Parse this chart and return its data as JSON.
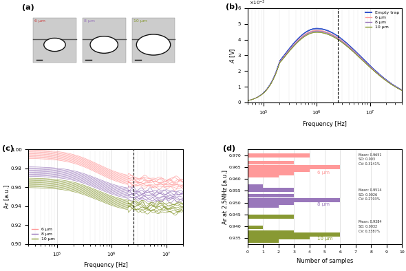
{
  "panel_b": {
    "xlabel": "Frequency [Hz]",
    "ylabel": "A [V]",
    "ylim": [
      0,
      6
    ],
    "xlim_log": [
      50000.0,
      40000000.0
    ],
    "dashed_x": 2500000.0,
    "colors": {
      "empty": "#3355CC",
      "6um": "#FF9999",
      "8um": "#9977BB",
      "10um": "#889933"
    },
    "legend": [
      "Empty trap",
      "6 μm",
      "8 μm",
      "10 μm"
    ]
  },
  "panel_c": {
    "xlabel": "Frequency [Hz]",
    "ylabel": "Ar [a.u.]",
    "ylim": [
      0.9,
      1.0
    ],
    "xlim_log": [
      30000.0,
      20000000.0
    ],
    "dashed_x": 2500000.0,
    "colors": {
      "6um": "#FF9999",
      "8um": "#9977BB",
      "10um": "#889933"
    },
    "legend": [
      "6 μm",
      "8 μm",
      "10 μm"
    ]
  },
  "panel_d": {
    "xlabel": "Number of samples",
    "ylabel": "Ar at 2.5MHz [a.u.]",
    "xlim": [
      0,
      10
    ],
    "ylim": [
      0.9325,
      0.9725
    ],
    "colors": {
      "6um": "#FF9999",
      "8um": "#9977BB",
      "10um": "#889933"
    },
    "bars_6um_y": [
      0.97,
      0.967,
      0.965,
      0.9638,
      0.9625,
      0.9615
    ],
    "bars_6um_x": [
      4,
      3,
      6,
      4,
      3,
      2
    ],
    "bars_8um_y": [
      0.957,
      0.9555,
      0.953,
      0.951,
      0.9498,
      0.9488
    ],
    "bars_8um_x": [
      1,
      3,
      3,
      6,
      3,
      2
    ],
    "bars_10um_y": [
      0.944,
      0.9395,
      0.9375,
      0.9365,
      0.9352,
      0.9338
    ],
    "bars_10um_x": [
      3,
      1,
      3,
      6,
      4,
      2
    ],
    "stats_6um": {
      "mean": 0.9651,
      "sd": 0.003,
      "cv": "0.3141%"
    },
    "stats_8um": {
      "mean": 0.9514,
      "sd": 0.0026,
      "cv": "0.2703%"
    },
    "stats_10um": {
      "mean": 0.9384,
      "sd": 0.0032,
      "cv": "0.3387%"
    },
    "yticks": [
      0.935,
      0.94,
      0.945,
      0.95,
      0.955,
      0.96,
      0.965,
      0.97
    ]
  },
  "bg_color": "#FFFFFF"
}
